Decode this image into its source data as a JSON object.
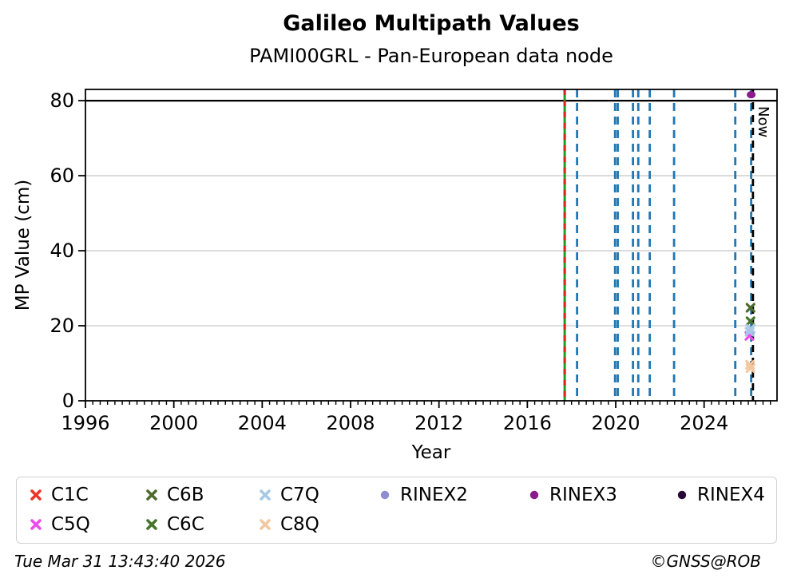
{
  "title": "Galileo Multipath Values",
  "subtitle": "PAMI00GRL - Pan-European data node",
  "footer": {
    "timestamp": "Tue Mar 31 13:43:40 2026",
    "credit": "©GNSS@ROB"
  },
  "chart_data": {
    "type": "scatter",
    "title": "Galileo Multipath Values",
    "subtitle": "PAMI00GRL - Pan-European data node",
    "xlabel": "Year",
    "ylabel": "MP Value (cm)",
    "xlim": [
      1996,
      2027.3
    ],
    "ylim": [
      0,
      83
    ],
    "x_major_ticks": [
      1996,
      2000,
      2004,
      2008,
      2012,
      2016,
      2020,
      2024
    ],
    "x_minor_tick_step": 0.3333,
    "y_ticks": [
      0,
      20,
      40,
      60,
      80
    ],
    "grid": {
      "y_values": [
        20,
        40,
        60
      ],
      "color": "#c9c9c9",
      "legend_position": "bottom"
    },
    "threshold_line": {
      "y": 80,
      "color": "#000000"
    },
    "vlines": {
      "green_red": {
        "year": 2017.69,
        "green_color": "#1f9a1f",
        "red_color": "#dd2222"
      },
      "blue_dashed": {
        "color": "#1f77b4",
        "years": [
          2018.25,
          2019.97,
          2020.09,
          2020.78,
          2021.02,
          2021.54,
          2022.64,
          2025.41,
          2026.13
        ]
      },
      "now": {
        "year": 2026.21,
        "label": "Now",
        "color": "#000000"
      }
    },
    "series": [
      {
        "name": "C1C",
        "marker": "x",
        "color": "#ec3428",
        "points": []
      },
      {
        "name": "C5Q",
        "marker": "x",
        "color": "#ee4bee",
        "points": [
          [
            2026.05,
            17.3
          ]
        ]
      },
      {
        "name": "C6B",
        "marker": "x",
        "color": "#4d6b2d",
        "points": [
          [
            2026.1,
            24.8
          ]
        ]
      },
      {
        "name": "C6C",
        "marker": "x",
        "color": "#47742c",
        "points": [
          [
            2026.1,
            21.2
          ]
        ]
      },
      {
        "name": "C7Q",
        "marker": "x",
        "color": "#a6c9e6",
        "points": [
          [
            2026.1,
            19.2
          ],
          [
            2026.06,
            18.4
          ]
        ]
      },
      {
        "name": "C8Q",
        "marker": "x",
        "color": "#f3c7a0",
        "points": [
          [
            2026.08,
            9.6
          ],
          [
            2026.1,
            8.7
          ]
        ]
      },
      {
        "name": "RINEX2",
        "marker": "circle",
        "color": "#8d8dd0",
        "points": []
      },
      {
        "name": "RINEX3",
        "marker": "circle",
        "color": "#8a1b8b",
        "points": [
          [
            2026.13,
            81.6
          ]
        ]
      },
      {
        "name": "RINEX4",
        "marker": "circle",
        "color": "#270a33",
        "points": []
      }
    ],
    "legend_columns": [
      [
        "C1C",
        "C5Q"
      ],
      [
        "C6B",
        "C6C"
      ],
      [
        "C7Q",
        "C8Q"
      ],
      [
        "RINEX2"
      ],
      [
        "RINEX3"
      ],
      [
        "RINEX4"
      ]
    ]
  }
}
